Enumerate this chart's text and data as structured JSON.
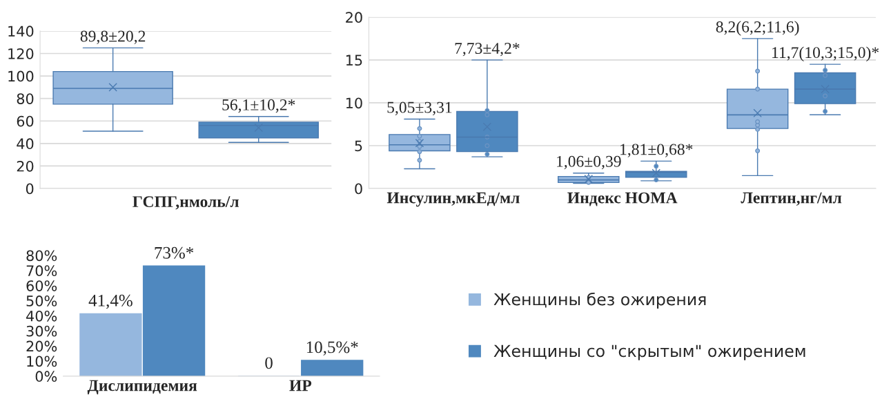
{
  "chart_data": [
    {
      "type": "box",
      "xlabel": "ГСПГ,нмоль/л",
      "categories": [
        null,
        null
      ],
      "ylim": [
        0,
        140
      ],
      "yticks": [
        0,
        20,
        40,
        60,
        80,
        100,
        120,
        140
      ],
      "grid": "y",
      "colors": [
        "#95b7de",
        "#4f88bf"
      ],
      "boxes": [
        {
          "low": 51,
          "q1": 75,
          "median": 89,
          "q3": 104,
          "high": 125,
          "mean": 90
        },
        {
          "low": 41,
          "q1": 45,
          "median": 56,
          "q3": 59,
          "high": 64,
          "mean": 54
        }
      ],
      "annotations": [
        "89,8±20,2",
        "56,1±10,2*"
      ]
    },
    {
      "type": "box",
      "categories": [
        "Инсулин,мкЕд/мл",
        "Индекс НОМА",
        "Лептин,нг/мл"
      ],
      "ylim": [
        0,
        20
      ],
      "yticks": [
        0,
        5,
        10,
        15,
        20
      ],
      "grid": "y",
      "series": [
        {
          "color": "#95b7de",
          "boxes": [
            {
              "low": 2.3,
              "q1": 4.4,
              "median": 5.1,
              "q3": 6.3,
              "high": 8.1,
              "mean": 5.3,
              "outliers": [
                3.3,
                4.3,
                4.9,
                5.5,
                6.1,
                7.0
              ]
            },
            {
              "low": 0.6,
              "q1": 0.7,
              "median": 1.0,
              "q3": 1.4,
              "high": 1.8,
              "mean": 1.1,
              "outliers": [
                0.7,
                1.3
              ]
            },
            {
              "low": 1.5,
              "q1": 7.0,
              "median": 8.6,
              "q3": 11.6,
              "high": 17.5,
              "mean": 8.8,
              "outliers": [
                4.4,
                6.9,
                7.4,
                7.8,
                11.6,
                13.7
              ]
            }
          ]
        },
        {
          "color": "#4f88bf",
          "boxes": [
            {
              "low": 3.7,
              "q1": 4.3,
              "median": 6.0,
              "q3": 9.0,
              "high": 15.0,
              "mean": 7.2,
              "outliers": [
                4.0,
                5.0,
                6.0,
                8.6,
                9.1
              ]
            },
            {
              "low": 0.9,
              "q1": 1.3,
              "median": 1.9,
              "q3": 2.0,
              "high": 3.2,
              "mean": 1.8,
              "outliers": [
                1.0,
                2.6
              ]
            },
            {
              "low": 8.6,
              "q1": 9.9,
              "median": 11.6,
              "q3": 13.5,
              "high": 14.5,
              "mean": 11.6,
              "outliers": [
                9.0,
                10.8,
                13.2,
                13.8
              ]
            }
          ]
        }
      ],
      "annotations": [
        "5,05±3,31",
        "7,73±4,2*",
        "1,06±0,39",
        "1,81±0,68*",
        "8,2(6,2;11,6)",
        "11,7(10,3;15,0)*"
      ]
    },
    {
      "type": "bar",
      "categories": [
        "Дислипидемия",
        "ИР"
      ],
      "ylim": [
        0,
        80
      ],
      "yticks": [
        {
          "value": 0,
          "label": "0%"
        },
        {
          "value": 10,
          "label": "10%"
        },
        {
          "value": 20,
          "label": "20%"
        },
        {
          "value": 30,
          "label": "30%"
        },
        {
          "value": 40,
          "label": "40%"
        },
        {
          "value": 50,
          "label": "50%"
        },
        {
          "value": 60,
          "label": "60%"
        },
        {
          "value": 70,
          "label": "70%"
        },
        {
          "value": 80,
          "label": "80%"
        }
      ],
      "legend": "right",
      "series": [
        {
          "name": "Женщины без ожирения",
          "color": "#95b7de",
          "values": [
            41.4,
            0
          ],
          "value_labels": [
            "41,4%",
            "0"
          ]
        },
        {
          "name": "Женщины со \"скрытым\" ожирением",
          "color": "#4f88bf",
          "values": [
            73,
            10.5
          ],
          "value_labels": [
            "73%*",
            "10,5%*"
          ]
        }
      ]
    }
  ]
}
